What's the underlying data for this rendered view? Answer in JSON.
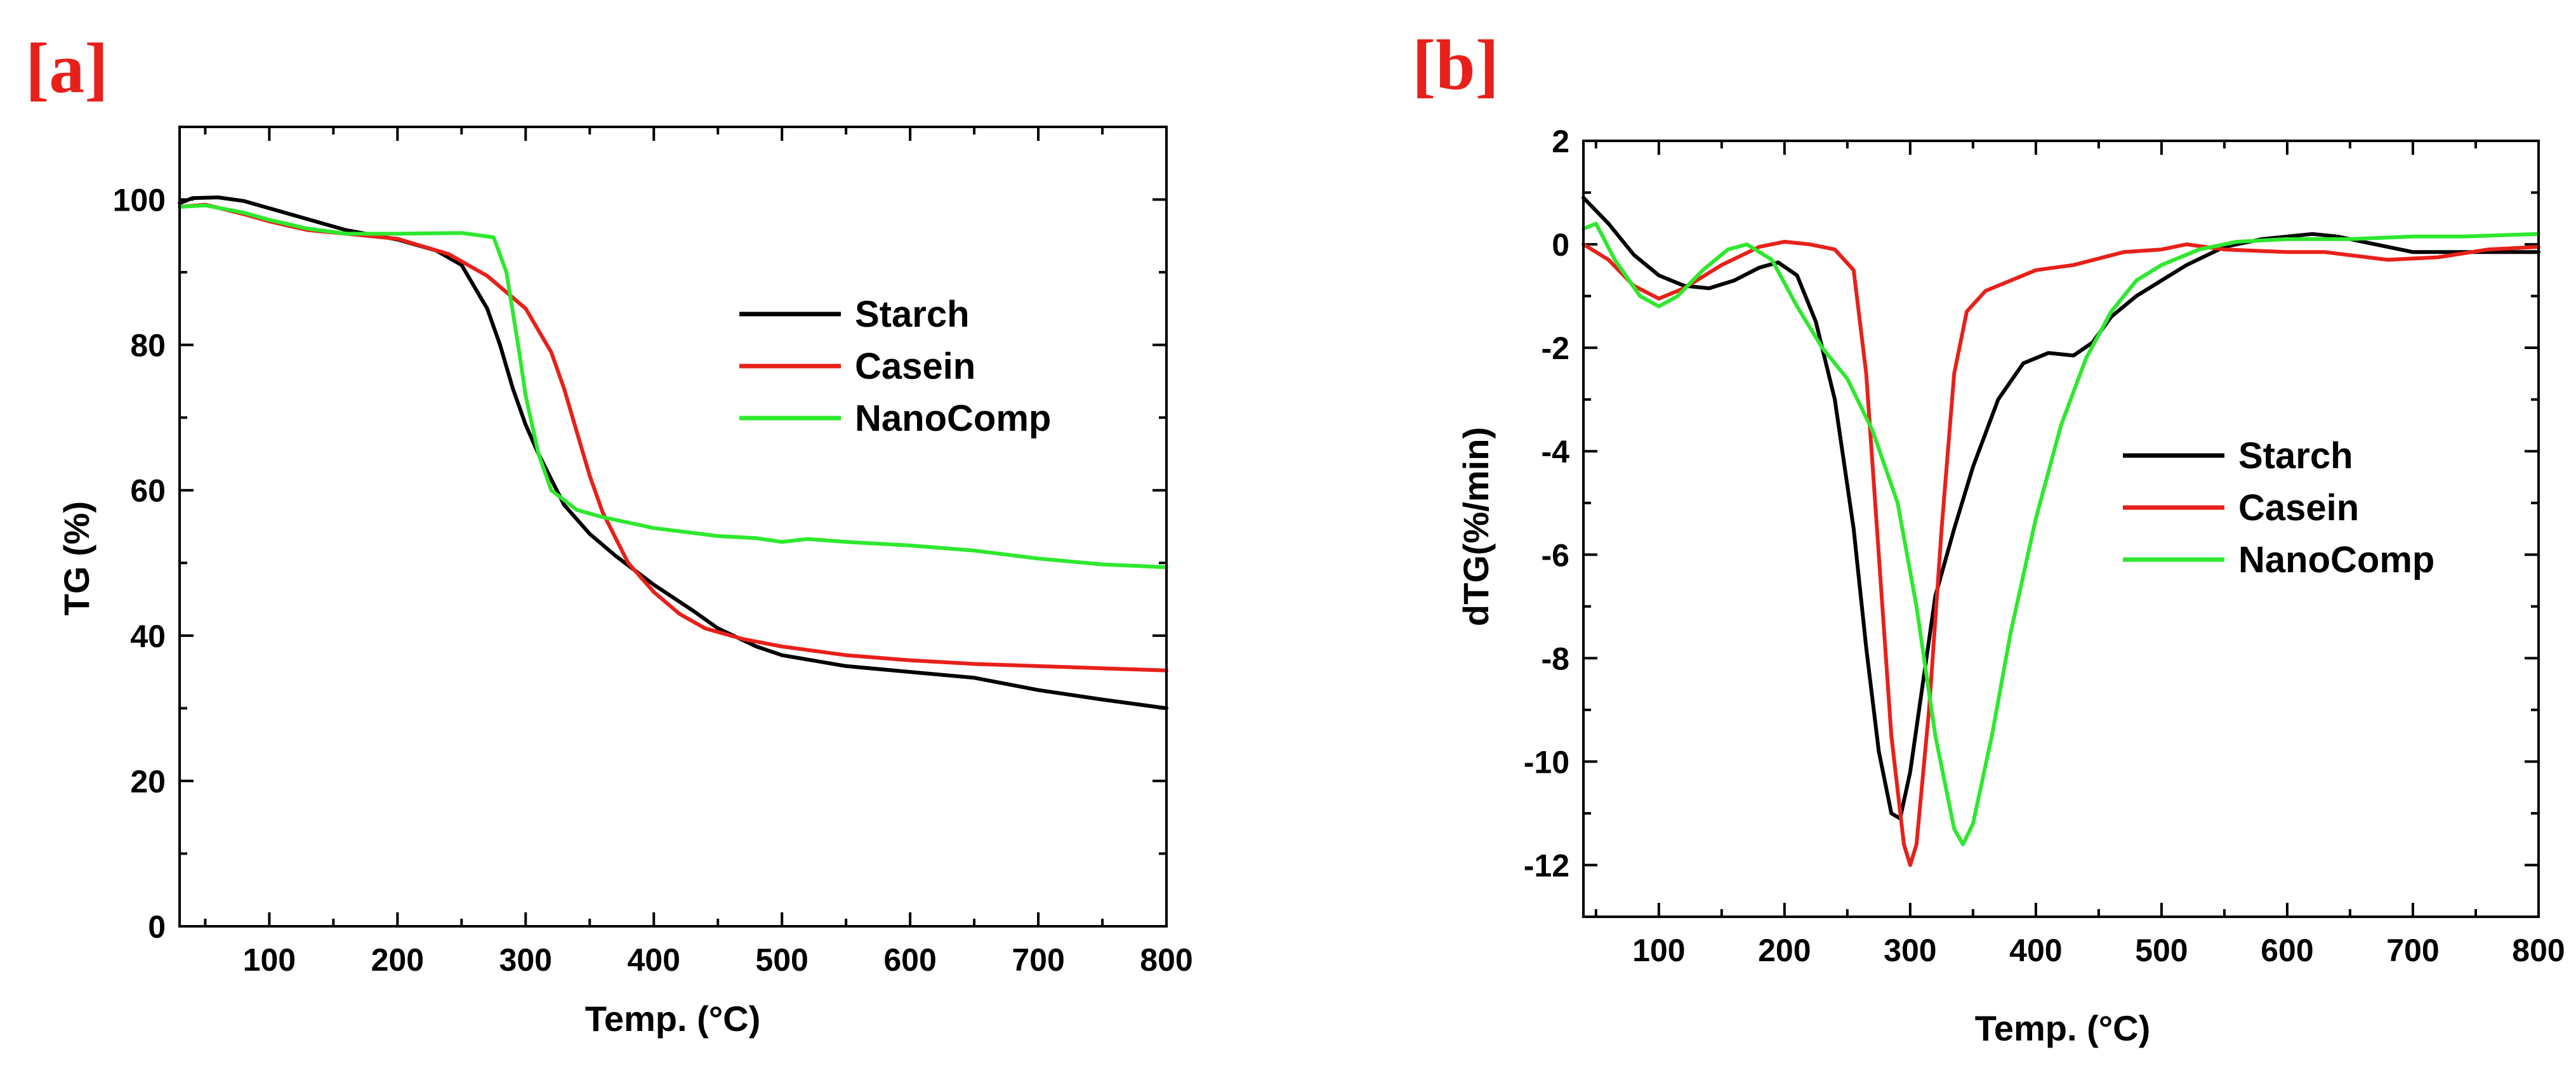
{
  "chart_data": [
    {
      "type": "line",
      "panel_label": "[a]",
      "panel_label_color": "#e8201a",
      "title": "",
      "xlabel": "Temp. (°C)",
      "ylabel": "TG (%)",
      "xlim": [
        30,
        800
      ],
      "ylim": [
        0,
        110
      ],
      "xticks": [
        100,
        200,
        300,
        400,
        500,
        600,
        700,
        800
      ],
      "yticks": [
        0,
        20,
        40,
        60,
        80,
        100
      ],
      "legend_position": "upper-right",
      "series": [
        {
          "name": "Starch",
          "color": "#000000",
          "points": [
            [
              30,
              99.5
            ],
            [
              40,
              100.2
            ],
            [
              60,
              100.3
            ],
            [
              80,
              99.8
            ],
            [
              100,
              98.8
            ],
            [
              130,
              97.3
            ],
            [
              160,
              95.8
            ],
            [
              200,
              94.5
            ],
            [
              230,
              93.0
            ],
            [
              250,
              91.0
            ],
            [
              270,
              85.0
            ],
            [
              280,
              80.0
            ],
            [
              290,
              74.0
            ],
            [
              300,
              69.0
            ],
            [
              310,
              65.0
            ],
            [
              330,
              58.0
            ],
            [
              350,
              54.0
            ],
            [
              370,
              51.0
            ],
            [
              400,
              47.0
            ],
            [
              430,
              43.5
            ],
            [
              450,
              41.0
            ],
            [
              480,
              38.5
            ],
            [
              500,
              37.3
            ],
            [
              550,
              35.8
            ],
            [
              600,
              35.0
            ],
            [
              650,
              34.2
            ],
            [
              700,
              32.5
            ],
            [
              750,
              31.2
            ],
            [
              800,
              30.0
            ]
          ]
        },
        {
          "name": "Casein",
          "color": "#e8201a",
          "points": [
            [
              30,
              99.0
            ],
            [
              50,
              99.3
            ],
            [
              80,
              98.0
            ],
            [
              100,
              97.0
            ],
            [
              130,
              95.8
            ],
            [
              160,
              95.3
            ],
            [
              200,
              94.6
            ],
            [
              240,
              92.5
            ],
            [
              270,
              89.5
            ],
            [
              300,
              85.0
            ],
            [
              320,
              79.0
            ],
            [
              330,
              74.0
            ],
            [
              340,
              68.0
            ],
            [
              350,
              62.0
            ],
            [
              360,
              57.0
            ],
            [
              380,
              50.0
            ],
            [
              400,
              46.0
            ],
            [
              420,
              43.0
            ],
            [
              440,
              41.0
            ],
            [
              470,
              39.5
            ],
            [
              500,
              38.5
            ],
            [
              550,
              37.3
            ],
            [
              600,
              36.6
            ],
            [
              650,
              36.1
            ],
            [
              700,
              35.8
            ],
            [
              750,
              35.5
            ],
            [
              800,
              35.2
            ]
          ]
        },
        {
          "name": "NanoComp",
          "color": "#2ee82e",
          "points": [
            [
              30,
              99.0
            ],
            [
              50,
              99.2
            ],
            [
              80,
              98.2
            ],
            [
              100,
              97.2
            ],
            [
              130,
              96.0
            ],
            [
              160,
              95.3
            ],
            [
              200,
              95.3
            ],
            [
              250,
              95.4
            ],
            [
              275,
              94.8
            ],
            [
              285,
              90.0
            ],
            [
              295,
              79.0
            ],
            [
              300,
              73.0
            ],
            [
              310,
              65.0
            ],
            [
              320,
              60.0
            ],
            [
              340,
              57.3
            ],
            [
              360,
              56.3
            ],
            [
              400,
              54.8
            ],
            [
              450,
              53.7
            ],
            [
              480,
              53.4
            ],
            [
              500,
              52.9
            ],
            [
              520,
              53.3
            ],
            [
              550,
              52.9
            ],
            [
              600,
              52.4
            ],
            [
              650,
              51.7
            ],
            [
              700,
              50.6
            ],
            [
              750,
              49.8
            ],
            [
              800,
              49.4
            ]
          ]
        }
      ]
    },
    {
      "type": "line",
      "panel_label": "[b]",
      "panel_label_color": "#e8201a",
      "title": "",
      "xlabel": "Temp. (°C)",
      "ylabel": "dTG(%/min)",
      "xlim": [
        40,
        800
      ],
      "ylim": [
        -13,
        2
      ],
      "xticks": [
        100,
        200,
        300,
        400,
        500,
        600,
        700,
        800
      ],
      "yticks": [
        2,
        0,
        -2,
        -4,
        -6,
        -8,
        -10,
        -12
      ],
      "legend_position": "center-right",
      "series": [
        {
          "name": "Starch",
          "color": "#000000",
          "points": [
            [
              40,
              0.9
            ],
            [
              60,
              0.4
            ],
            [
              80,
              -0.2
            ],
            [
              100,
              -0.6
            ],
            [
              120,
              -0.8
            ],
            [
              140,
              -0.85
            ],
            [
              160,
              -0.7
            ],
            [
              180,
              -0.45
            ],
            [
              195,
              -0.35
            ],
            [
              210,
              -0.6
            ],
            [
              225,
              -1.5
            ],
            [
              240,
              -3.0
            ],
            [
              255,
              -5.5
            ],
            [
              265,
              -7.8
            ],
            [
              275,
              -9.8
            ],
            [
              285,
              -11.0
            ],
            [
              292,
              -11.1
            ],
            [
              300,
              -10.2
            ],
            [
              310,
              -8.5
            ],
            [
              320,
              -6.8
            ],
            [
              335,
              -5.5
            ],
            [
              350,
              -4.3
            ],
            [
              370,
              -3.0
            ],
            [
              390,
              -2.3
            ],
            [
              410,
              -2.1
            ],
            [
              430,
              -2.15
            ],
            [
              445,
              -1.9
            ],
            [
              460,
              -1.4
            ],
            [
              480,
              -1.0
            ],
            [
              500,
              -0.7
            ],
            [
              520,
              -0.4
            ],
            [
              550,
              -0.05
            ],
            [
              580,
              0.1
            ],
            [
              620,
              0.2
            ],
            [
              640,
              0.15
            ],
            [
              670,
              0.0
            ],
            [
              700,
              -0.15
            ],
            [
              750,
              -0.15
            ],
            [
              800,
              -0.15
            ]
          ]
        },
        {
          "name": "Casein",
          "color": "#e8201a",
          "points": [
            [
              40,
              0.0
            ],
            [
              60,
              -0.3
            ],
            [
              80,
              -0.8
            ],
            [
              100,
              -1.05
            ],
            [
              120,
              -0.85
            ],
            [
              150,
              -0.4
            ],
            [
              180,
              -0.05
            ],
            [
              200,
              0.05
            ],
            [
              220,
              0.0
            ],
            [
              240,
              -0.1
            ],
            [
              255,
              -0.5
            ],
            [
              265,
              -2.5
            ],
            [
              275,
              -6.0
            ],
            [
              285,
              -9.5
            ],
            [
              295,
              -11.6
            ],
            [
              300,
              -12.0
            ],
            [
              305,
              -11.6
            ],
            [
              315,
              -9.0
            ],
            [
              325,
              -5.5
            ],
            [
              335,
              -2.5
            ],
            [
              345,
              -1.3
            ],
            [
              360,
              -0.9
            ],
            [
              380,
              -0.7
            ],
            [
              400,
              -0.5
            ],
            [
              430,
              -0.4
            ],
            [
              470,
              -0.15
            ],
            [
              500,
              -0.1
            ],
            [
              520,
              0.0
            ],
            [
              550,
              -0.1
            ],
            [
              600,
              -0.15
            ],
            [
              630,
              -0.15
            ],
            [
              680,
              -0.3
            ],
            [
              720,
              -0.25
            ],
            [
              760,
              -0.1
            ],
            [
              800,
              -0.05
            ]
          ]
        },
        {
          "name": "NanoComp",
          "color": "#2ee82e",
          "points": [
            [
              40,
              0.3
            ],
            [
              50,
              0.4
            ],
            [
              65,
              -0.3
            ],
            [
              85,
              -1.0
            ],
            [
              100,
              -1.2
            ],
            [
              115,
              -1.0
            ],
            [
              135,
              -0.5
            ],
            [
              155,
              -0.1
            ],
            [
              170,
              0.0
            ],
            [
              190,
              -0.3
            ],
            [
              210,
              -1.2
            ],
            [
              230,
              -2.0
            ],
            [
              250,
              -2.6
            ],
            [
              270,
              -3.6
            ],
            [
              290,
              -5.0
            ],
            [
              305,
              -7.0
            ],
            [
              320,
              -9.5
            ],
            [
              335,
              -11.3
            ],
            [
              342,
              -11.6
            ],
            [
              350,
              -11.2
            ],
            [
              365,
              -9.5
            ],
            [
              380,
              -7.5
            ],
            [
              400,
              -5.3
            ],
            [
              420,
              -3.5
            ],
            [
              440,
              -2.2
            ],
            [
              460,
              -1.3
            ],
            [
              480,
              -0.7
            ],
            [
              500,
              -0.4
            ],
            [
              530,
              -0.1
            ],
            [
              560,
              0.05
            ],
            [
              600,
              0.1
            ],
            [
              650,
              0.1
            ],
            [
              700,
              0.15
            ],
            [
              740,
              0.15
            ],
            [
              800,
              0.2
            ]
          ]
        }
      ]
    }
  ]
}
